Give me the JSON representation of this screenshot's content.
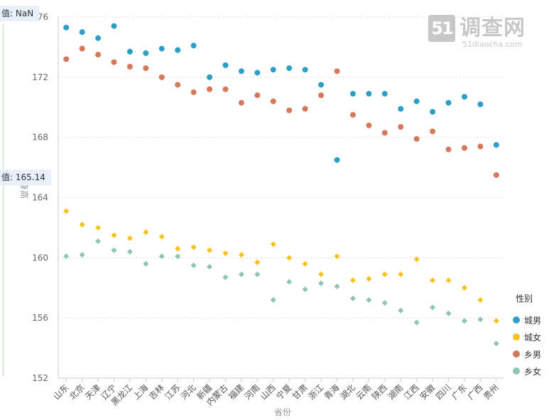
{
  "tooltip_top": "值: NaN",
  "tooltip_mid": "值: 165.14",
  "logo": {
    "number": "51",
    "name": "调查网",
    "url": "51diaocha.com"
  },
  "colors": {
    "城男": "#2e9fc4",
    "城女": "#f7c21b",
    "乡男": "#d4795c",
    "乡女": "#8ec5ac"
  },
  "chart_data": {
    "type": "scatter",
    "xlabel": "省份",
    "ylabel": "身高",
    "ylim": [
      152,
      176
    ],
    "yticks": [
      152,
      156,
      160,
      164,
      168,
      172,
      176
    ],
    "grid": true,
    "legend_position": "right",
    "legend_title": "性别",
    "categories": [
      "山东",
      "北京",
      "天津",
      "辽宁",
      "黑龙江",
      "上海",
      "吉林",
      "江苏",
      "河北",
      "新疆",
      "内蒙古",
      "福建",
      "河南",
      "山西",
      "宁夏",
      "甘肃",
      "浙江",
      "青海",
      "湖北",
      "云南",
      "陕西",
      "湖南",
      "江西",
      "安徽",
      "四川",
      "广东",
      "广西",
      "贵州"
    ],
    "series": [
      {
        "name": "城男",
        "marker": "circle",
        "values": [
          175.3,
          175.0,
          174.6,
          175.4,
          173.7,
          173.6,
          173.9,
          173.8,
          174.1,
          172.0,
          172.8,
          172.4,
          172.3,
          172.5,
          172.6,
          172.5,
          171.5,
          166.5,
          170.9,
          170.9,
          170.9,
          169.9,
          170.4,
          169.7,
          170.3,
          170.7,
          170.2,
          167.5
        ]
      },
      {
        "name": "城女",
        "marker": "diamond",
        "values": [
          163.1,
          162.2,
          162.0,
          161.5,
          161.3,
          161.7,
          161.4,
          160.6,
          160.7,
          160.5,
          160.3,
          160.2,
          159.7,
          160.9,
          160.0,
          159.6,
          158.9,
          160.1,
          158.5,
          158.6,
          158.9,
          158.9,
          159.9,
          158.5,
          158.5,
          158.0,
          157.2,
          155.8
        ]
      },
      {
        "name": "乡男",
        "marker": "circle",
        "values": [
          173.2,
          173.9,
          173.5,
          173.0,
          172.7,
          172.6,
          172.0,
          171.5,
          171.0,
          171.2,
          171.2,
          170.3,
          170.8,
          170.4,
          169.8,
          169.9,
          170.8,
          172.4,
          169.5,
          168.8,
          168.3,
          168.7,
          167.9,
          168.4,
          167.2,
          167.3,
          167.4,
          165.5
        ]
      },
      {
        "name": "乡女",
        "marker": "diamond",
        "values": [
          160.1,
          160.2,
          161.1,
          160.5,
          160.4,
          159.6,
          160.1,
          160.1,
          159.5,
          159.4,
          158.7,
          158.9,
          158.9,
          157.2,
          158.4,
          157.9,
          158.3,
          158.1,
          157.3,
          157.2,
          157.0,
          156.5,
          155.7,
          156.7,
          156.3,
          155.8,
          155.9,
          154.3
        ]
      }
    ]
  }
}
